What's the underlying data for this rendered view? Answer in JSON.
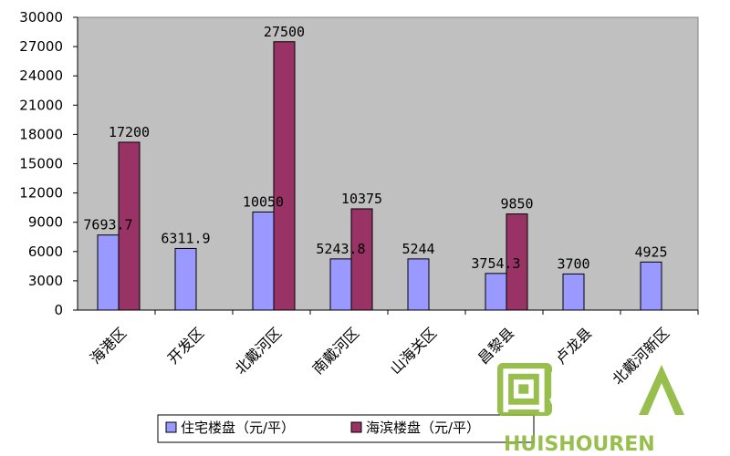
{
  "chart_data": {
    "type": "bar",
    "categories": [
      "海港区",
      "开发区",
      "北戴河区",
      "南戴河区",
      "山海关区",
      "昌黎县",
      "卢龙县",
      "北戴河新区"
    ],
    "series": [
      {
        "name": "住宅楼盘（元/平）",
        "color": "#9999ff",
        "values": [
          7693.7,
          6311.9,
          10050,
          5243.8,
          5244,
          3754.3,
          3700,
          4925
        ],
        "labels": [
          "7693.7",
          "6311.9",
          "10050",
          "5243.8",
          "5244",
          "3754.3",
          "3700",
          "4925"
        ]
      },
      {
        "name": "海滨楼盘（元/平）",
        "color": "#993366",
        "values": [
          17200,
          null,
          27500,
          10375,
          null,
          9850,
          null,
          null
        ],
        "labels": [
          "17200",
          "",
          "27500",
          "10375",
          "",
          "9850",
          "",
          ""
        ]
      }
    ],
    "ylim": [
      0,
      30000
    ],
    "yticks": [
      0,
      3000,
      6000,
      9000,
      12000,
      15000,
      18000,
      21000,
      24000,
      27000,
      30000
    ],
    "plot_background": "#c0c0c0",
    "grid": false,
    "legend_position": "bottom"
  },
  "watermark": {
    "main_text": "回收",
    "sub_text": "HUISHOUREN",
    "color": "#8db83a"
  }
}
